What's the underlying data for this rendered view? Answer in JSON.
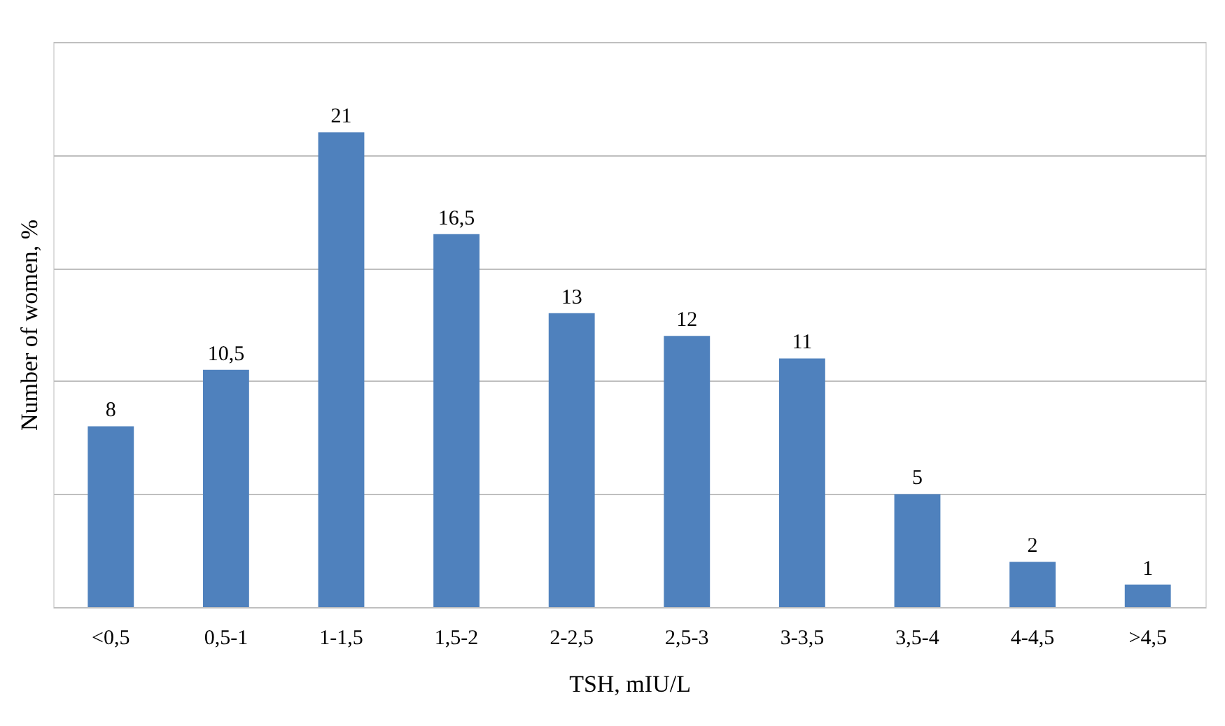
{
  "chart_data": {
    "type": "bar",
    "xlabel": "TSH, mIU/L",
    "ylabel": "Number of women, %",
    "categories": [
      "<0,5",
      "0,5-1",
      "1-1,5",
      "1,5-2",
      "2-2,5",
      "2,5-3",
      "3-3,5",
      "3,5-4",
      "4-4,5",
      ">4,5"
    ],
    "values": [
      8,
      10.5,
      21,
      16.5,
      13,
      12,
      11,
      5,
      2,
      1
    ],
    "value_labels": [
      "8",
      "10,5",
      "21",
      "16,5",
      "13",
      "12",
      "11",
      "5",
      "2",
      "1"
    ],
    "color": "#4f81bd",
    "ylim": [
      0,
      25
    ],
    "yticks": [
      {
        "value": 0,
        "label": null
      },
      {
        "value": 5,
        "label": null
      },
      {
        "value": 10,
        "label": null
      },
      {
        "value": 15,
        "label": null
      },
      {
        "value": 20,
        "label": null
      },
      {
        "value": 25,
        "label": null
      }
    ],
    "tick_labels": "x",
    "grid": "y"
  }
}
